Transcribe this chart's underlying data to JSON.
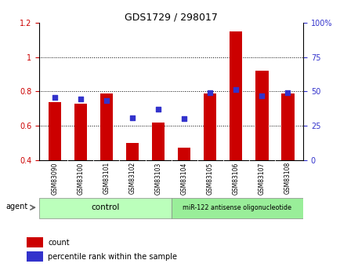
{
  "title": "GDS1729 / 298017",
  "samples": [
    "GSM83090",
    "GSM83100",
    "GSM83101",
    "GSM83102",
    "GSM83103",
    "GSM83104",
    "GSM83105",
    "GSM83106",
    "GSM83107",
    "GSM83108"
  ],
  "red_values": [
    0.74,
    0.73,
    0.79,
    0.5,
    0.62,
    0.47,
    0.79,
    1.15,
    0.92,
    0.79
  ],
  "blue_values": [
    0.765,
    0.755,
    0.745,
    0.645,
    0.695,
    0.64,
    0.795,
    0.81,
    0.775,
    0.795
  ],
  "ylim_left": [
    0.4,
    1.2
  ],
  "ylim_right": [
    0,
    100
  ],
  "yticks_left": [
    0.4,
    0.6,
    0.8,
    1.0,
    1.2
  ],
  "ytick_labels_left": [
    "0.4",
    "0.6",
    "0.8",
    "1",
    "1.2"
  ],
  "yticks_right_vals": [
    0,
    25,
    50,
    75,
    100
  ],
  "ytick_labels_right": [
    "0",
    "25",
    "50",
    "75",
    "100%"
  ],
  "control_label": "control",
  "treatment_label": "miR-122 antisense oligonucleotide",
  "agent_label": "agent",
  "red_color": "#cc0000",
  "blue_color": "#3333cc",
  "legend_count": "count",
  "legend_percentile": "percentile rank within the sample",
  "bar_width": 0.5,
  "bg_color": "#ffffff",
  "plot_bg": "#ffffff",
  "tick_label_area_bg": "#cccccc",
  "control_bg": "#bbffbb",
  "treatment_bg": "#99ee99",
  "border_color": "#888888"
}
